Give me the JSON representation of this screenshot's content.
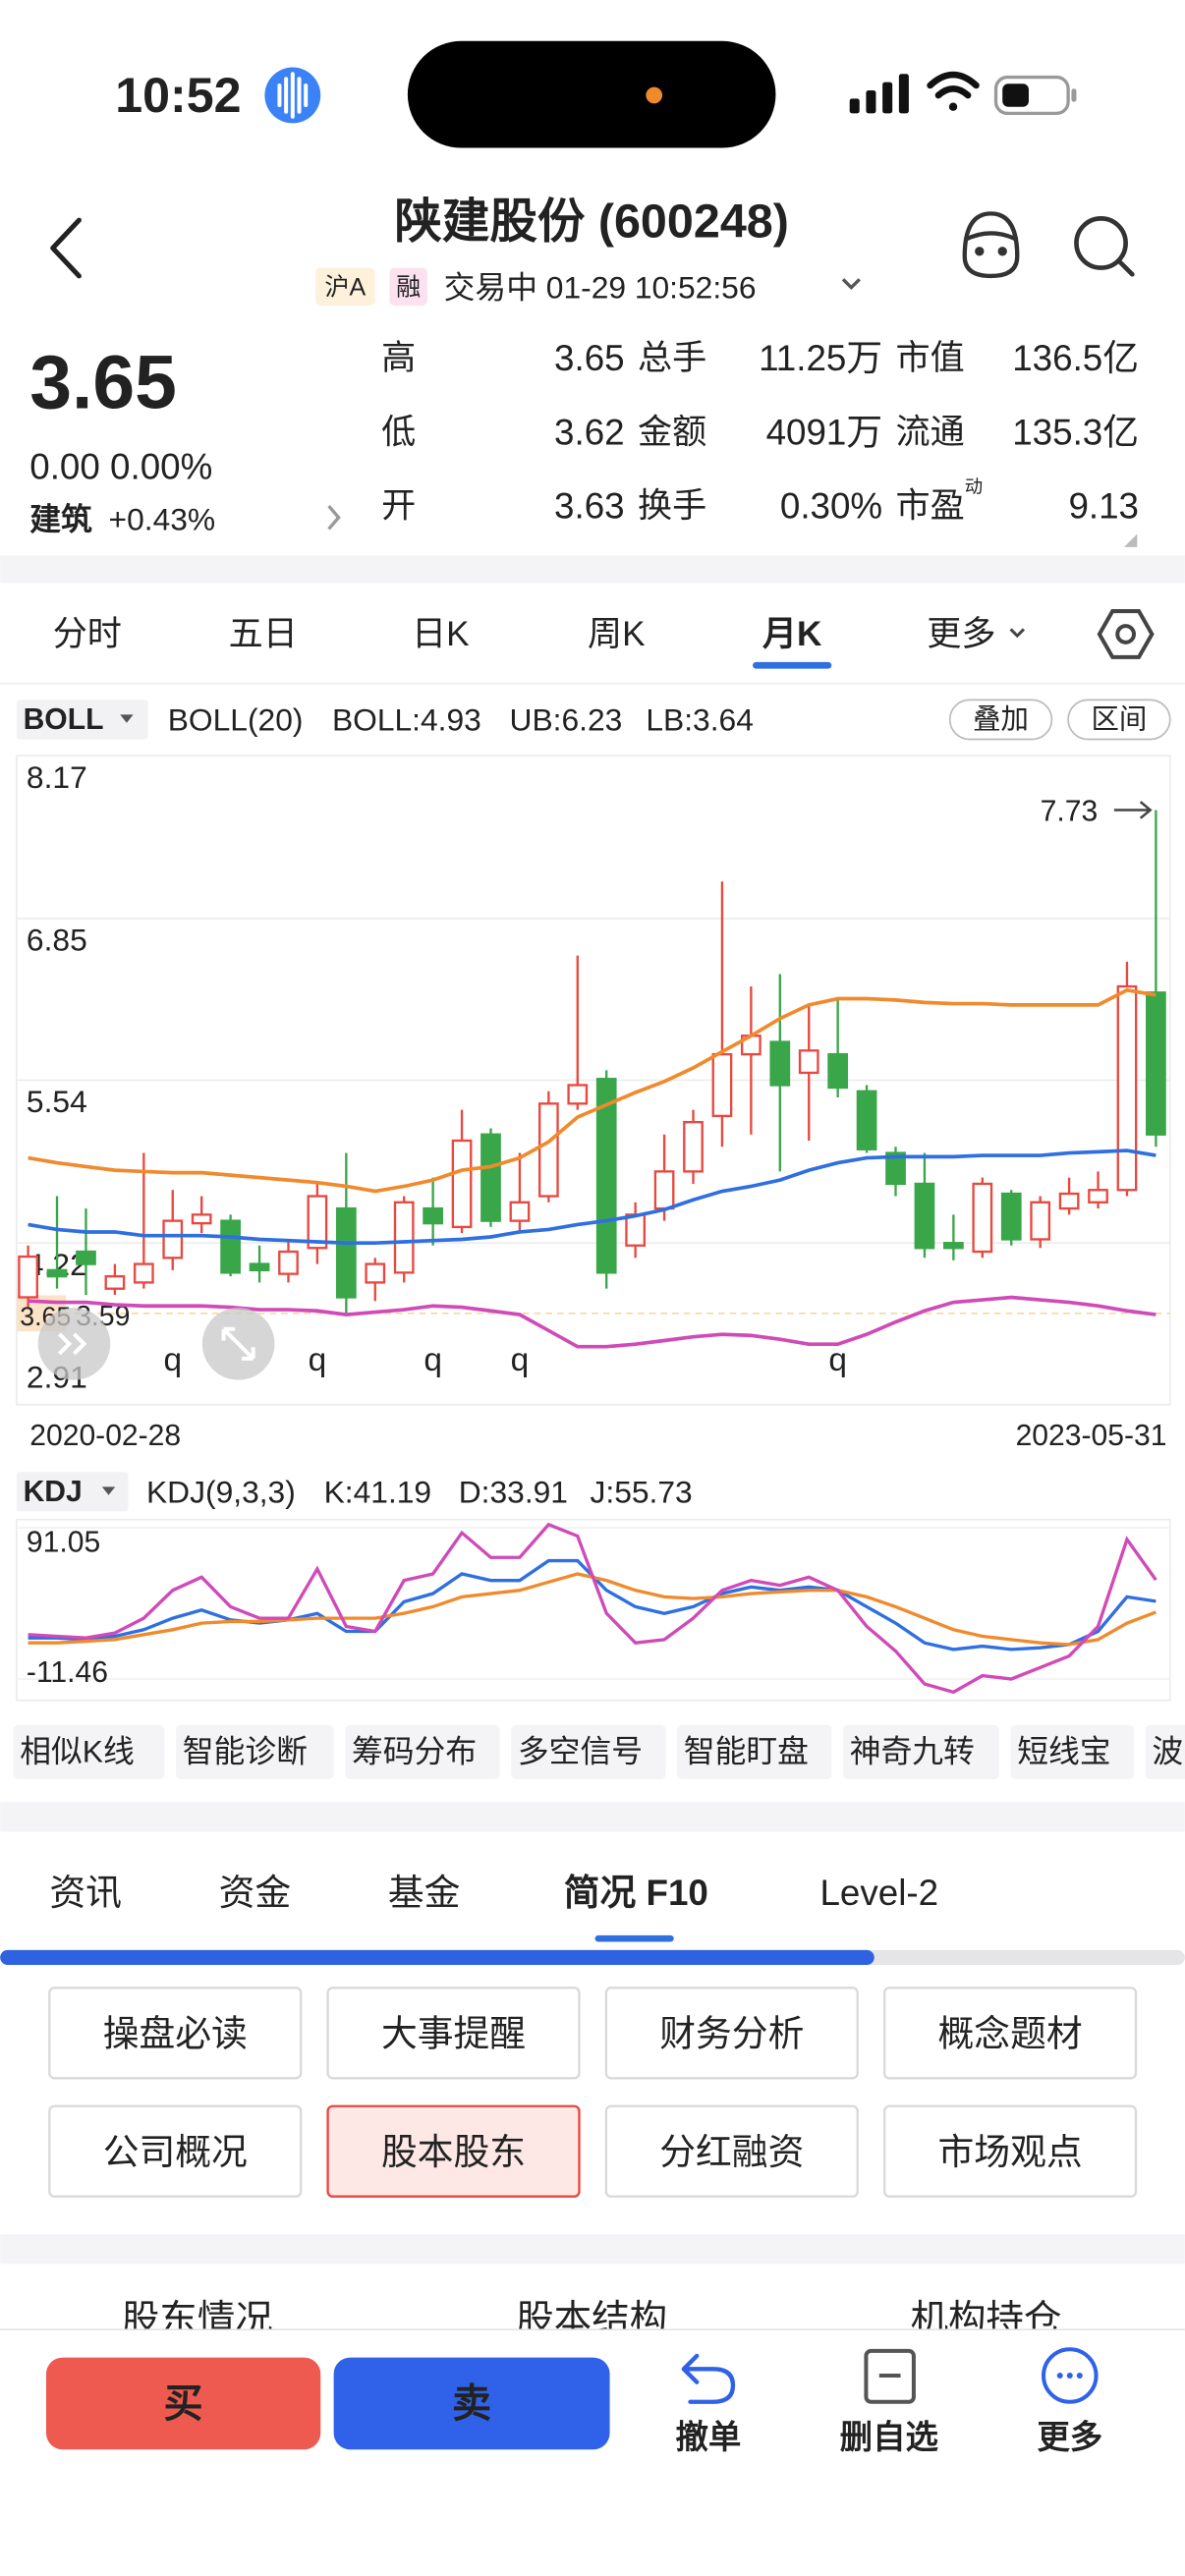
{
  "status_bar": {
    "time": "10:52"
  },
  "header": {
    "title": "陕建股份 (600248)",
    "badges": [
      "沪A",
      "融"
    ],
    "status": "交易中 01-29 10:52:56"
  },
  "quote": {
    "price": "3.65",
    "change": "0.00 0.00%",
    "sector": "建筑",
    "sector_change": "+0.43%",
    "rows": [
      [
        {
          "label": "高",
          "value": "3.65",
          "color": "#222222"
        },
        {
          "label": "总手",
          "value": "11.25万",
          "color": "#222222"
        },
        {
          "label": "市值",
          "value": "136.5亿",
          "color": "#222222"
        }
      ],
      [
        {
          "label": "低",
          "value": "3.62",
          "color": "#2ea34a"
        },
        {
          "label": "金额",
          "value": "4091万",
          "color": "#222222"
        },
        {
          "label": "流通",
          "value": "135.3亿",
          "color": "#222222"
        }
      ],
      [
        {
          "label": "开",
          "value": "3.63",
          "color": "#2ea34a"
        },
        {
          "label": "换手",
          "value": "0.30%",
          "color": "#222222"
        },
        {
          "label": "市盈",
          "sup": "动",
          "value": "9.13",
          "color": "#222222"
        }
      ]
    ]
  },
  "periods": [
    "分时",
    "五日",
    "日K",
    "周K",
    "月K",
    "更多"
  ],
  "active_period": 4,
  "indicator": {
    "name": "BOLL",
    "params": "BOLL(20)",
    "buttons": [
      "叠加",
      "区间"
    ]
  },
  "chart": {
    "ylim": [
      2.91,
      8.17
    ],
    "yticks": [
      8.17,
      6.85,
      5.54,
      4.22,
      2.91
    ],
    "dates": [
      "2020-02-28",
      "2023-05-31"
    ],
    "cursor_label": "3.59",
    "up_color": "#e8483f",
    "down_color": "#3aa64a",
    "candles": [
      {
        "open": 3.78,
        "high": 4.2,
        "low": 3.7,
        "close": 4.11
      },
      {
        "open": 4.0,
        "high": 4.6,
        "low": 3.85,
        "close": 3.95
      },
      {
        "open": 4.15,
        "high": 4.5,
        "low": 3.8,
        "close": 4.05
      },
      {
        "open": 3.85,
        "high": 4.05,
        "low": 3.8,
        "close": 3.95
      },
      {
        "open": 3.9,
        "high": 4.95,
        "low": 3.85,
        "close": 4.05
      },
      {
        "open": 4.1,
        "high": 4.65,
        "low": 4.0,
        "close": 4.4
      },
      {
        "open": 4.38,
        "high": 4.6,
        "low": 4.3,
        "close": 4.45
      },
      {
        "open": 4.4,
        "high": 4.45,
        "low": 3.95,
        "close": 3.98
      },
      {
        "open": 4.05,
        "high": 4.2,
        "low": 3.9,
        "close": 4.0
      },
      {
        "open": 3.97,
        "high": 4.25,
        "low": 3.9,
        "close": 4.15
      },
      {
        "open": 4.18,
        "high": 4.7,
        "low": 4.05,
        "close": 4.6
      },
      {
        "open": 4.5,
        "high": 4.95,
        "low": 3.65,
        "close": 3.78
      },
      {
        "open": 3.9,
        "high": 4.1,
        "low": 3.75,
        "close": 4.05
      },
      {
        "open": 3.98,
        "high": 4.6,
        "low": 3.9,
        "close": 4.55
      },
      {
        "open": 4.5,
        "high": 4.75,
        "low": 4.2,
        "close": 4.38
      },
      {
        "open": 4.35,
        "high": 5.3,
        "low": 4.3,
        "close": 5.05
      },
      {
        "open": 5.1,
        "high": 5.15,
        "low": 4.35,
        "close": 4.4
      },
      {
        "open": 4.4,
        "high": 4.95,
        "low": 4.3,
        "close": 4.55
      },
      {
        "open": 4.6,
        "high": 5.45,
        "low": 4.55,
        "close": 5.35
      },
      {
        "open": 5.35,
        "high": 6.55,
        "low": 5.3,
        "close": 5.5
      },
      {
        "open": 5.55,
        "high": 5.62,
        "low": 3.85,
        "close": 3.98
      },
      {
        "open": 4.2,
        "high": 4.55,
        "low": 4.1,
        "close": 4.45
      },
      {
        "open": 4.5,
        "high": 5.1,
        "low": 4.4,
        "close": 4.8
      },
      {
        "open": 4.8,
        "high": 5.3,
        "low": 4.7,
        "close": 5.2
      },
      {
        "open": 5.25,
        "high": 7.15,
        "low": 5.0,
        "close": 5.75
      },
      {
        "open": 5.75,
        "high": 6.3,
        "low": 5.1,
        "close": 5.9
      },
      {
        "open": 5.85,
        "high": 6.4,
        "low": 4.8,
        "close": 5.5
      },
      {
        "open": 5.6,
        "high": 6.15,
        "low": 5.05,
        "close": 5.78
      },
      {
        "open": 5.75,
        "high": 6.2,
        "low": 5.4,
        "close": 5.48
      },
      {
        "open": 5.45,
        "high": 5.5,
        "low": 4.95,
        "close": 4.98
      },
      {
        "open": 4.95,
        "high": 5.0,
        "low": 4.6,
        "close": 4.7
      },
      {
        "open": 4.7,
        "high": 4.95,
        "low": 4.1,
        "close": 4.18
      },
      {
        "open": 4.22,
        "high": 4.45,
        "low": 4.08,
        "close": 4.18
      },
      {
        "open": 4.15,
        "high": 4.75,
        "low": 4.1,
        "close": 4.7
      },
      {
        "open": 4.62,
        "high": 4.65,
        "low": 4.2,
        "close": 4.25
      },
      {
        "open": 4.25,
        "high": 4.6,
        "low": 4.18,
        "close": 4.55
      },
      {
        "open": 4.5,
        "high": 4.75,
        "low": 4.45,
        "close": 4.62
      },
      {
        "open": 4.55,
        "high": 4.8,
        "low": 4.5,
        "close": 4.65
      },
      {
        "open": 4.65,
        "high": 6.5,
        "low": 4.6,
        "close": 6.3
      },
      {
        "open": 6.25,
        "high": 7.73,
        "low": 5.0,
        "close": 5.1
      }
    ],
    "series": [
      {
        "prefix": "BOLL:",
        "color": "#2f6fe0",
        "values": [
          4.37,
          4.33,
          4.31,
          4.31,
          4.28,
          4.28,
          4.28,
          4.27,
          4.25,
          4.24,
          4.23,
          4.22,
          4.22,
          4.23,
          4.24,
          4.25,
          4.27,
          4.31,
          4.33,
          4.37,
          4.4,
          4.44,
          4.49,
          4.57,
          4.64,
          4.68,
          4.73,
          4.81,
          4.87,
          4.91,
          4.92,
          4.92,
          4.92,
          4.93,
          4.93,
          4.93,
          4.95,
          4.96,
          4.97,
          4.93
        ]
      },
      {
        "prefix": "UB:",
        "color": "#f08a2c",
        "values": [
          4.91,
          4.87,
          4.84,
          4.81,
          4.8,
          4.79,
          4.79,
          4.77,
          4.75,
          4.73,
          4.71,
          4.68,
          4.64,
          4.68,
          4.73,
          4.81,
          4.84,
          4.91,
          5.04,
          5.24,
          5.34,
          5.44,
          5.53,
          5.64,
          5.77,
          5.9,
          6.04,
          6.15,
          6.2,
          6.2,
          6.19,
          6.17,
          6.16,
          6.16,
          6.15,
          6.15,
          6.15,
          6.15,
          6.27,
          6.23
        ]
      },
      {
        "prefix": "LB:",
        "color": "#d04ab8",
        "values": [
          3.75,
          3.74,
          3.74,
          3.72,
          3.71,
          3.71,
          3.71,
          3.7,
          3.68,
          3.68,
          3.67,
          3.64,
          3.66,
          3.68,
          3.71,
          3.7,
          3.67,
          3.64,
          3.51,
          3.38,
          3.38,
          3.4,
          3.43,
          3.46,
          3.48,
          3.47,
          3.44,
          3.4,
          3.4,
          3.48,
          3.58,
          3.67,
          3.74,
          3.76,
          3.78,
          3.76,
          3.74,
          3.71,
          3.67,
          3.64
        ]
      }
    ],
    "markers": [
      {
        "candle": 5,
        "label": "q"
      },
      {
        "candle": 10,
        "label": "q"
      },
      {
        "candle": 14,
        "label": "q"
      },
      {
        "candle": 17,
        "label": "q"
      },
      {
        "candle": 28,
        "label": "q"
      }
    ]
  },
  "kdj": {
    "name": "KDJ",
    "params": "KDJ(9,3,3)",
    "ylim": [
      -11.46,
      91.05
    ],
    "yticks": [
      91.05,
      -11.46
    ],
    "series": [
      {
        "prefix": "K:",
        "color": "#2f6fe0",
        "values": [
          16.4,
          16.4,
          15.29,
          17.51,
          21.97,
          29.77,
          35.34,
          28.65,
          26.43,
          28.65,
          32.99,
          20.86,
          20.86,
          40.91,
          46.48,
          59.85,
          55.4,
          55.4,
          68.77,
          68.77,
          48.71,
          37.57,
          32.99,
          37.57,
          46.48,
          50.94,
          48.71,
          50.94,
          48.71,
          37.57,
          26.43,
          13.06,
          8.6,
          10.83,
          8.6,
          9.72,
          11.94,
          20.86,
          44.25,
          41.19
        ]
      },
      {
        "prefix": "D:",
        "color": "#f08a2c",
        "values": [
          13.05,
          13.05,
          14.17,
          15.29,
          18.63,
          21.97,
          26.43,
          27.54,
          27.54,
          28.65,
          29.77,
          29.77,
          29.77,
          33.11,
          37.57,
          44.25,
          46.48,
          48.71,
          54.28,
          59.85,
          55.4,
          48.71,
          44.25,
          43.14,
          44.25,
          46.48,
          47.6,
          48.71,
          48.71,
          44.25,
          37.57,
          29.77,
          21.97,
          17.51,
          15.29,
          13.05,
          11.94,
          15.29,
          26.43,
          33.91
        ]
      },
      {
        "prefix": "J:",
        "color": "#d04ab8",
        "values": [
          18.63,
          17.51,
          16.4,
          19.74,
          29.77,
          48.71,
          57.62,
          37.57,
          29.77,
          29.77,
          63.19,
          24.2,
          20.86,
          55.4,
          59.85,
          87.71,
          70.99,
          70.99,
          93.28,
          85.48,
          33.11,
          13.05,
          15.29,
          29.77,
          48.71,
          55.4,
          52.05,
          57.62,
          48.71,
          24.2,
          7.49,
          -14.8,
          -20.37,
          -9.23,
          -11.46,
          -3.66,
          4.14,
          24.2,
          83.25,
          55.73
        ]
      }
    ]
  },
  "tools": [
    "相似K线",
    "智能诊断",
    "筹码分布",
    "多空信号",
    "智能盯盘",
    "神奇九转",
    "短线宝",
    "波"
  ],
  "info_tabs": [
    "资讯",
    "资金",
    "基金",
    "简况 F10",
    "Level-2"
  ],
  "active_info_tab": 3,
  "f10_buttons": [
    "操盘必读",
    "大事提醒",
    "财务分析",
    "概念题材",
    "公司概况",
    "股本股东",
    "分红融资",
    "市场观点"
  ],
  "active_f10": 5,
  "sub_tabs": [
    "股东情况",
    "股本结构",
    "机构持仓"
  ],
  "actions": {
    "buy": "买",
    "sell": "卖",
    "items": [
      "撤单",
      "删自选",
      "更多"
    ]
  }
}
